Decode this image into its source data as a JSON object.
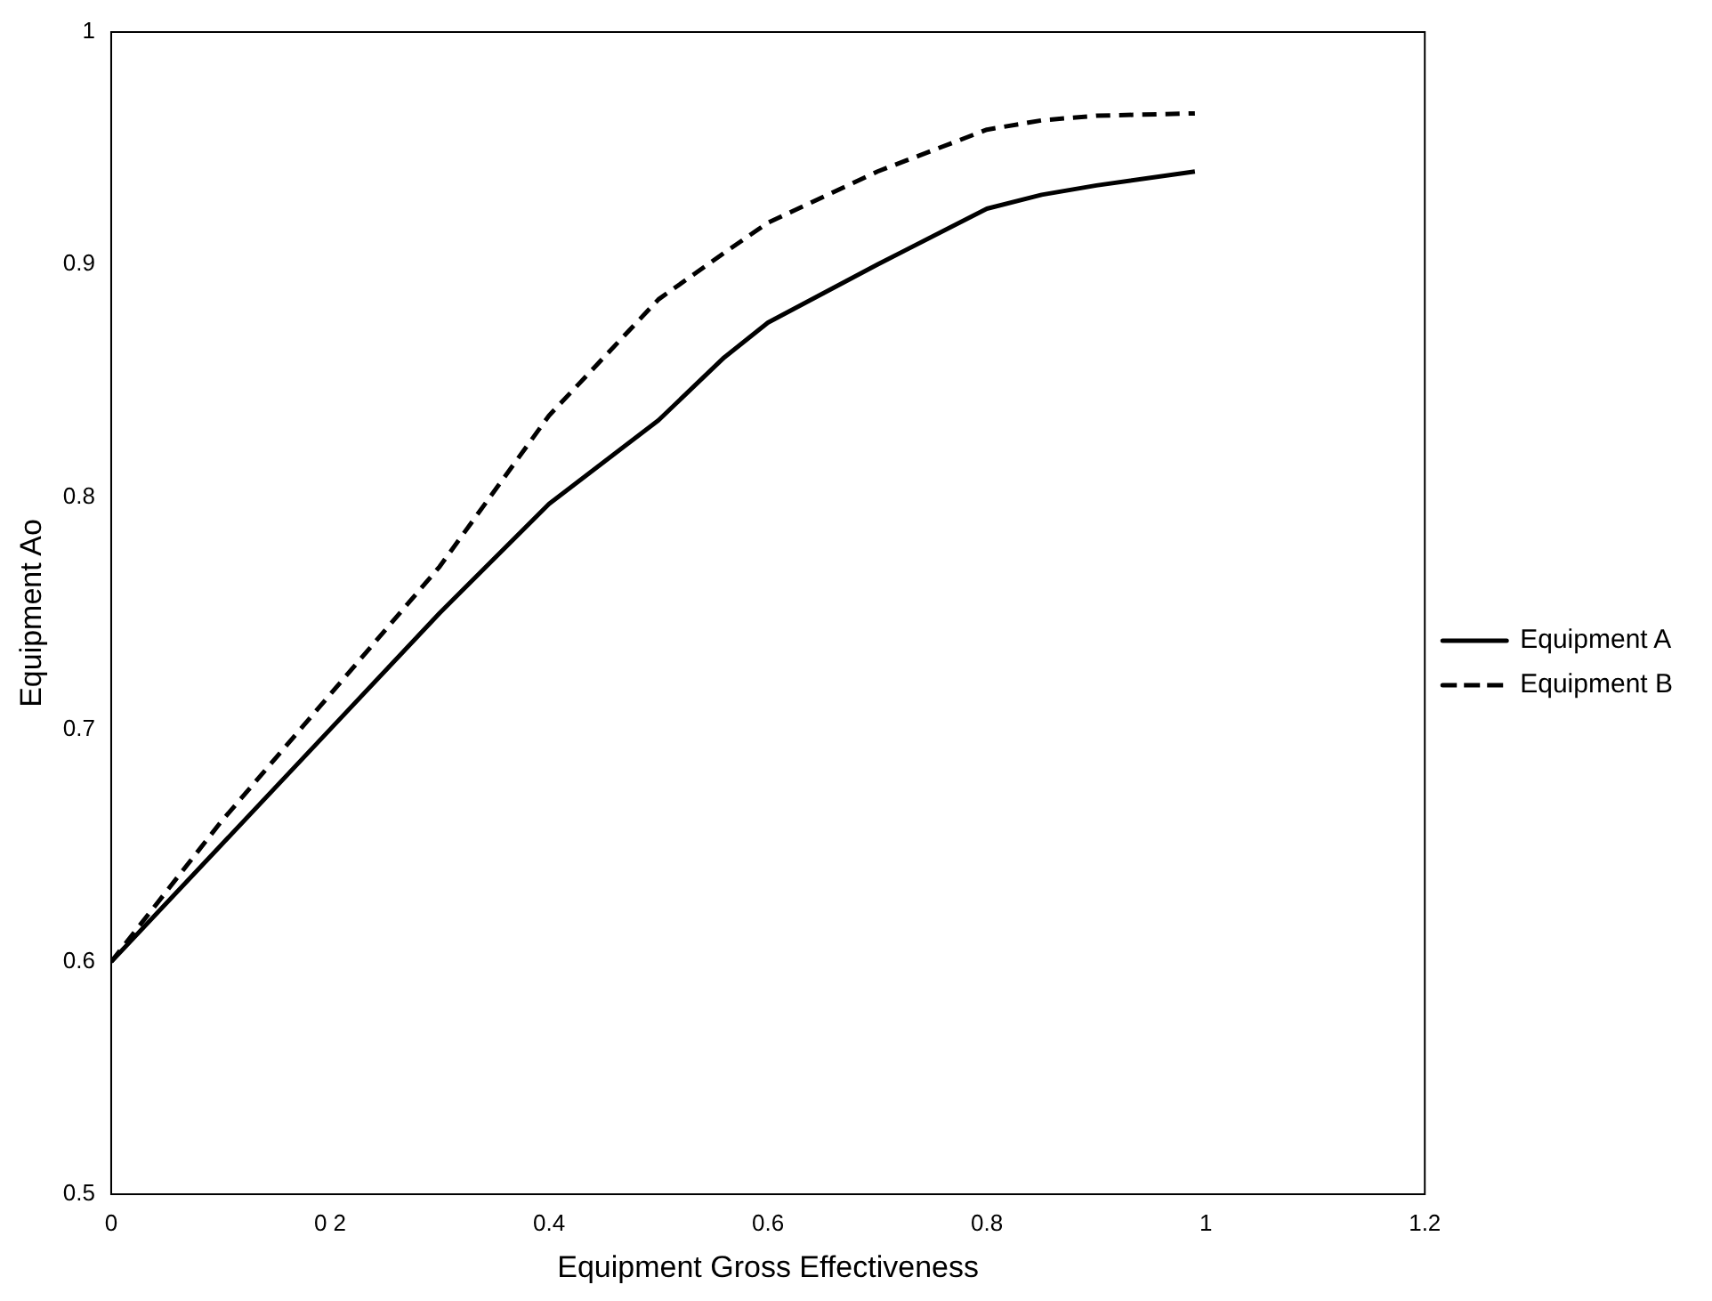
{
  "chart_data": {
    "type": "line",
    "xlabel": "Equipment Gross Effectiveness",
    "ylabel": "Equipment Ao",
    "xlim": [
      0,
      1.2
    ],
    "xticks": [
      0,
      {
        "value": 0.2,
        "label": "0 2"
      },
      0.4,
      0.6,
      0.8,
      1,
      1.2
    ],
    "ylim": [
      0.5,
      1
    ],
    "yticks": [
      0.5,
      0.6,
      0.7,
      0.8,
      0.9,
      1
    ],
    "grid": false,
    "legend": "right",
    "marker": "none",
    "x": [
      0,
      0.1,
      0.2,
      0.3,
      0.4,
      0.5,
      0.56,
      0.6,
      0.7,
      0.8,
      0.85,
      0.9,
      0.99
    ],
    "series": [
      {
        "name": "Equipment A",
        "color": "#000000",
        "line_style": "solid",
        "values": [
          0.6,
          0.65,
          0.7,
          0.75,
          0.797,
          0.833,
          0.86,
          0.875,
          0.9,
          0.924,
          0.93,
          0.934,
          0.94
        ]
      },
      {
        "name": "Equipment B",
        "color": "#000000",
        "line_style": "dashed",
        "values": [
          0.6,
          0.66,
          0.715,
          0.77,
          0.835,
          0.885,
          0.905,
          0.918,
          0.94,
          0.958,
          0.962,
          0.964,
          0.965
        ]
      }
    ]
  }
}
